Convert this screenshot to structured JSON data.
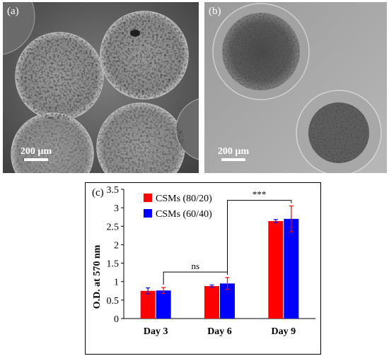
{
  "panels": {
    "a": {
      "label": "(a)",
      "scale_label": "200 µm"
    },
    "b": {
      "label": "(b)",
      "scale_label": "200 µm"
    }
  },
  "chart_data": {
    "panel_label": "(c)",
    "type": "bar",
    "categories": [
      "Day 3",
      "Day 6",
      "Day 9"
    ],
    "series": [
      {
        "name": "CSMs (80/20)",
        "color": "#ff0000",
        "values": [
          0.75,
          0.88,
          2.64
        ],
        "errors": [
          0.08,
          0.03,
          0.04
        ]
      },
      {
        "name": "CSMs (60/40)",
        "color": "#0000ff",
        "values": [
          0.76,
          0.95,
          2.7
        ],
        "errors": [
          0.08,
          0.16,
          0.35
        ]
      }
    ],
    "title": "",
    "xlabel": "",
    "ylabel": "O.D. at 570 nm",
    "ylim": [
      0,
      3.5
    ],
    "yticks": [
      0,
      0.5,
      1,
      1.5,
      2,
      2.5,
      3,
      3.5
    ],
    "ytick_labels": [
      "0",
      "0.5",
      "1",
      "1.5",
      "2",
      "2.5",
      "3",
      "3.5"
    ],
    "legend_position": "top-left",
    "grid": false,
    "annotations": [
      {
        "text": "ns",
        "from_category": 0,
        "to_category": 1
      },
      {
        "text": "***",
        "from_category": 1,
        "to_category": 2
      }
    ]
  }
}
